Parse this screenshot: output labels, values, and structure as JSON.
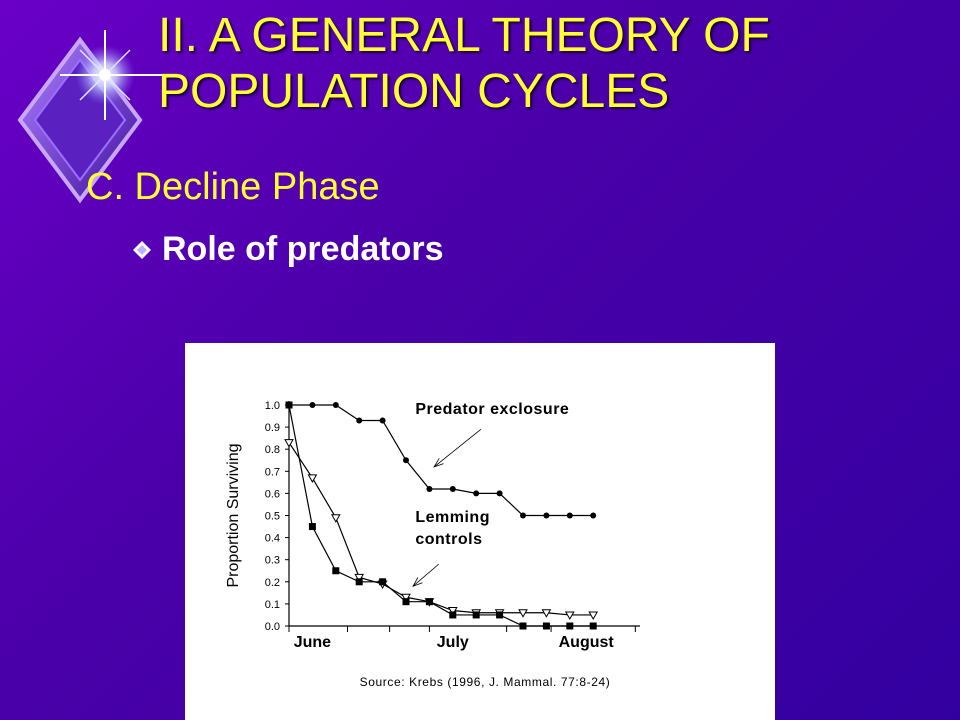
{
  "slide": {
    "title_line1": "II.  A GENERAL THEORY OF",
    "title_line2": "POPULATION CYCLES",
    "subheading": "C.  Decline Phase",
    "bullet": "Role of predators",
    "title_color": "#ffff33",
    "text_color": "#ffffff",
    "background_color": "#4a00a8",
    "logo_icon": "diamond-star-icon",
    "bullet_icon": "diamond-bullet-icon"
  },
  "chart_data": {
    "type": "line",
    "ylabel": "Proportion Surviving",
    "ylim": [
      0,
      1.0
    ],
    "yticks": [
      "0.0",
      "0.1",
      "0.2",
      "0.3",
      "0.4",
      "0.5",
      "0.6",
      "0.7",
      "0.8",
      "0.9",
      "1.0"
    ],
    "xlim": [
      0,
      15
    ],
    "month_labels": [
      {
        "label": "June",
        "x": 1.0
      },
      {
        "label": "July",
        "x": 7.0
      },
      {
        "label": "August",
        "x": 12.7
      }
    ],
    "month_ticks": [
      0,
      2.5,
      4.3,
      6.0,
      9.3,
      11.2,
      14.8
    ],
    "series": [
      {
        "marker": "circle",
        "x": [
          0,
          1,
          2,
          3,
          4,
          5,
          6,
          7,
          8,
          9,
          10,
          11,
          12,
          13
        ],
        "values": [
          1.0,
          1.0,
          1.0,
          0.93,
          0.93,
          0.75,
          0.62,
          0.62,
          0.6,
          0.6,
          0.5,
          0.5,
          0.5,
          0.5
        ]
      },
      {
        "marker": "triangle",
        "x": [
          0,
          1,
          2,
          3,
          4,
          5,
          6,
          7,
          8,
          9,
          10,
          11,
          12,
          13
        ],
        "values": [
          0.83,
          0.67,
          0.49,
          0.22,
          0.19,
          0.13,
          0.11,
          0.07,
          0.06,
          0.06,
          0.06,
          0.06,
          0.05,
          0.05
        ]
      },
      {
        "marker": "square",
        "x": [
          0,
          1,
          2,
          3,
          4,
          5,
          6,
          7,
          8,
          9,
          10,
          11,
          12,
          13
        ],
        "values": [
          1.0,
          0.45,
          0.25,
          0.2,
          0.2,
          0.11,
          0.11,
          0.05,
          0.05,
          0.05,
          0.0,
          0.0,
          0.0,
          0.0
        ]
      }
    ],
    "annotations": [
      {
        "text": "Predator exclosure",
        "x": 5.4,
        "y": 0.96
      },
      {
        "text": "Lemming",
        "x": 5.4,
        "y": 0.47
      },
      {
        "text": "controls",
        "x": 5.4,
        "y": 0.37
      }
    ],
    "arrows": [
      {
        "from_x": 8.2,
        "from_y": 0.89,
        "to_x": 6.2,
        "to_y": 0.72
      },
      {
        "from_x": 6.4,
        "from_y": 0.28,
        "to_x": 5.3,
        "to_y": 0.18
      }
    ],
    "source": "Source:  Krebs (1996, J. Mammal. 77:8-24)"
  }
}
